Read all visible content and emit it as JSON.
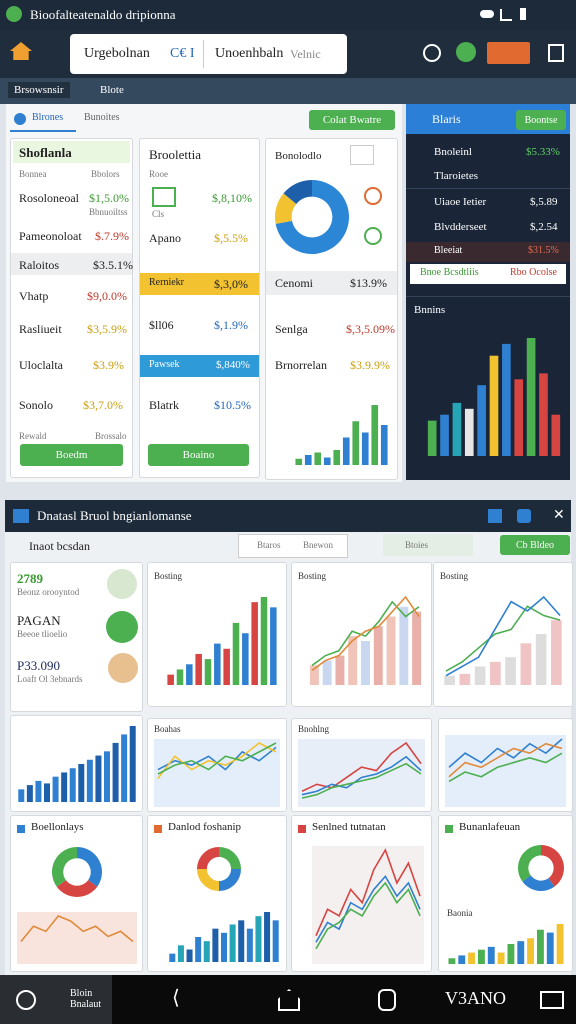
{
  "status": {
    "title": "Bioofalteatenaldo dripionna"
  },
  "toolbar": {
    "search1": "Urgebolnan",
    "search1_tag": "C€ I",
    "search2": "Unoenhbaln",
    "search2_hint": "Velnic"
  },
  "tabs": [
    "Brsowsnsir",
    "Blote"
  ],
  "panel": {
    "tabs": [
      "Blrones",
      "Bunoites"
    ],
    "button": "Colat Bwatre"
  },
  "card1": {
    "title": "Shoflanla",
    "header": [
      "Bonnea",
      "Bbolors"
    ],
    "rows": [
      [
        "Rosoloneoal",
        "$1,5.0%"
      ],
      [
        "Pameonoloat",
        "$.7.9%"
      ],
      [
        "Raloitos",
        "$3.5.1%"
      ],
      [
        "Vhatp",
        "$9,0.0%"
      ],
      [
        "Rasliueit",
        "$3,5.9%"
      ],
      [
        "Uloclalta",
        "$3.9%"
      ],
      [
        "Sonolo",
        "$3,7.0%"
      ]
    ],
    "sub": "Bbnuoiltss",
    "footer": [
      "Rewald",
      "Brossalo"
    ],
    "button": "Boedm"
  },
  "card2": {
    "title": "Broolettia",
    "header": "Rooe",
    "rows": [
      [
        "Cls",
        "$,8,10%"
      ],
      [
        "Apano",
        "$,5.5%"
      ],
      [
        "Rerniekr",
        "$,3,0%"
      ],
      [
        "$ll06",
        "$,1.9%"
      ],
      [
        "Pawsek",
        "$,840%"
      ],
      [
        "Blatrk",
        "$10.5%"
      ]
    ],
    "button": "Boaino"
  },
  "card3": {
    "title": "Bonolodlo",
    "rows": [
      [
        "Cenomi",
        "$13.9%"
      ],
      [
        "Senlga",
        "$,3,5.09%"
      ],
      [
        "Brnorrelan",
        "$3.9.9%"
      ]
    ]
  },
  "side": {
    "title": "Blaris",
    "button": "Boontse",
    "rows": [
      [
        "Bnoleinl",
        "$5.33%"
      ],
      [
        "Tlaroietes",
        ""
      ],
      [
        "Uiaoe Ietier",
        "$,5.89"
      ],
      [
        "Blvdderseet",
        "$,2.54"
      ],
      [
        "Bleeiat",
        "$31.5%"
      ]
    ],
    "strip": [
      "Bnoe Bcsdtliis",
      "Rbo Ocolse"
    ],
    "chart_title": "Bnnins"
  },
  "window": {
    "title": "Dnatasl Bruol bngianlomanse",
    "subtitle": "Inaot bcsdan",
    "tabs": [
      "Btaros",
      "Bnewon"
    ],
    "search": "Btoies",
    "button": "Cb Bldeo",
    "stats": [
      [
        "2789",
        "Beonz orooyntod"
      ],
      [
        "PAGAN",
        "Beeoe tlioelio"
      ],
      [
        "P33.090",
        "Loaft Ol 3ebnards"
      ]
    ],
    "chart_titles": [
      "Bosting",
      "Bosting",
      "Bosting",
      "Boahas",
      "Bnohlng"
    ],
    "card_titles": [
      "Boellonlays",
      "Danlod foshanip",
      "Senlned tutnatan",
      "Bunanlafeuan"
    ],
    "extra": "Baonia"
  },
  "nav": {
    "label": "Bloin Bnalaut",
    "brand": "V3ANO"
  },
  "charts": {
    "card3_bars": {
      "values": [
        5,
        8,
        10,
        6,
        12,
        22,
        35,
        26,
        48,
        32
      ],
      "colors": [
        "#4caf50",
        "#2f80d0"
      ]
    },
    "donut_main": {
      "slices": [
        72,
        14,
        14
      ],
      "colors": [
        "#2b86d6",
        "#f2c230",
        "#1d5fa8"
      ]
    },
    "side_bars": {
      "values": [
        30,
        35,
        45,
        40,
        60,
        85,
        95,
        65,
        100,
        70,
        35
      ],
      "colors": [
        "#4caf50",
        "#2f80d0",
        "#25a5b5",
        "#e6e6e6",
        "#2f80d0",
        "#f2c230",
        "#2f80d0",
        "#d64541",
        "#4caf50",
        "#d64541",
        "#d64541"
      ]
    },
    "stat_bars": {
      "values": [
        15,
        20,
        25,
        22,
        30,
        35,
        40,
        45,
        50,
        55,
        60,
        70,
        80,
        90
      ],
      "colors": [
        "#2f80d0",
        "#1d5fa8"
      ]
    },
    "chart_a": {
      "values": [
        10,
        15,
        20,
        30,
        25,
        40,
        35,
        60,
        50,
        80,
        85,
        75
      ],
      "colors": [
        "#d64541",
        "#4caf50",
        "#2f80d0"
      ]
    },
    "chart_b": {
      "values": [
        20,
        25,
        30,
        50,
        45,
        60,
        70,
        80,
        75
      ],
      "colors": [
        "#f0c4b8",
        "#c9d8f0",
        "#e8b0a8"
      ],
      "lines": [
        {
          "color": "#4caf50",
          "values": [
            20,
            30,
            35,
            55,
            50,
            65,
            85,
            70,
            80
          ]
        },
        {
          "color": "#e08a3a",
          "values": [
            15,
            25,
            30,
            45,
            55,
            60,
            75,
            90,
            70
          ]
        }
      ]
    },
    "chart_c": {
      "values": [
        10,
        12,
        20,
        25,
        30,
        45,
        55,
        70
      ],
      "colors": [
        "#dddddd",
        "#f0c4c4"
      ],
      "lines": [
        {
          "color": "#4caf50",
          "values": [
            15,
            25,
            40,
            55,
            60,
            85,
            75,
            70
          ]
        },
        {
          "color": "#2f80d0",
          "values": [
            10,
            20,
            30,
            60,
            90,
            80,
            95,
            75
          ]
        }
      ]
    },
    "area_a": {
      "lines": [
        {
          "color": "#2f80d0",
          "values": [
            40,
            50,
            45,
            55,
            40,
            60,
            50,
            65
          ]
        },
        {
          "color": "#f2c230",
          "values": [
            30,
            55,
            40,
            50,
            45,
            55,
            70,
            60
          ]
        },
        {
          "color": "#4caf50",
          "values": [
            35,
            45,
            50,
            40,
            55,
            50,
            60,
            70
          ]
        }
      ]
    },
    "area_b": {
      "lines": [
        {
          "color": "#d64541",
          "values": [
            20,
            30,
            25,
            40,
            55,
            50,
            75,
            90,
            60
          ]
        },
        {
          "color": "#2f80d0",
          "values": [
            15,
            20,
            30,
            25,
            40,
            45,
            55,
            70,
            50
          ]
        },
        {
          "color": "#4caf50",
          "values": [
            10,
            15,
            25,
            30,
            35,
            40,
            50,
            60,
            45
          ]
        }
      ]
    },
    "area_c": {
      "lines": [
        {
          "color": "#2f80d0",
          "values": [
            40,
            55,
            45,
            60,
            50,
            65,
            55,
            70
          ]
        },
        {
          "color": "#e08a3a",
          "values": [
            30,
            45,
            40,
            50,
            60,
            55,
            65,
            60
          ]
        },
        {
          "color": "#4caf50",
          "values": [
            25,
            35,
            30,
            40,
            45,
            50,
            45,
            55
          ]
        }
      ]
    },
    "donut_b1": {
      "slices": [
        35,
        30,
        35
      ],
      "colors": [
        "#2f80d0",
        "#d64541",
        "#4caf50"
      ]
    },
    "line_b1": {
      "lines": [
        {
          "color": "#e08a3a",
          "values": [
            20,
            35,
            30,
            45,
            40,
            30,
            35,
            25,
            30,
            20
          ]
        }
      ]
    },
    "donut_b2": {
      "slices": [
        25,
        25,
        25,
        25
      ],
      "colors": [
        "#4caf50",
        "#2f80d0",
        "#f2c230",
        "#d64541"
      ]
    },
    "bars_b2": {
      "values": [
        10,
        20,
        15,
        30,
        25,
        40,
        35,
        45,
        50,
        40,
        55,
        60,
        50
      ],
      "colors": [
        "#2f80d0",
        "#25a5b5",
        "#1d5fa8"
      ]
    },
    "line_b3": {
      "lines": [
        {
          "color": "#d64541",
          "values": [
            20,
            40,
            35,
            55,
            45,
            70,
            85,
            60,
            75,
            50
          ]
        },
        {
          "color": "#2f80d0",
          "values": [
            15,
            30,
            25,
            45,
            40,
            55,
            65,
            50,
            60,
            40
          ]
        },
        {
          "color": "#4caf50",
          "values": [
            10,
            25,
            30,
            40,
            35,
            50,
            60,
            45,
            55,
            35
          ]
        }
      ]
    },
    "donut_b4": {
      "slices": [
        40,
        25,
        35
      ],
      "colors": [
        "#d64541",
        "#2f80d0",
        "#4caf50"
      ]
    },
    "bars_b4": {
      "values": [
        10,
        15,
        20,
        25,
        30,
        20,
        35,
        40,
        45,
        60,
        55,
        70
      ],
      "colors": [
        "#4caf50",
        "#2f80d0",
        "#f2c230"
      ]
    }
  }
}
